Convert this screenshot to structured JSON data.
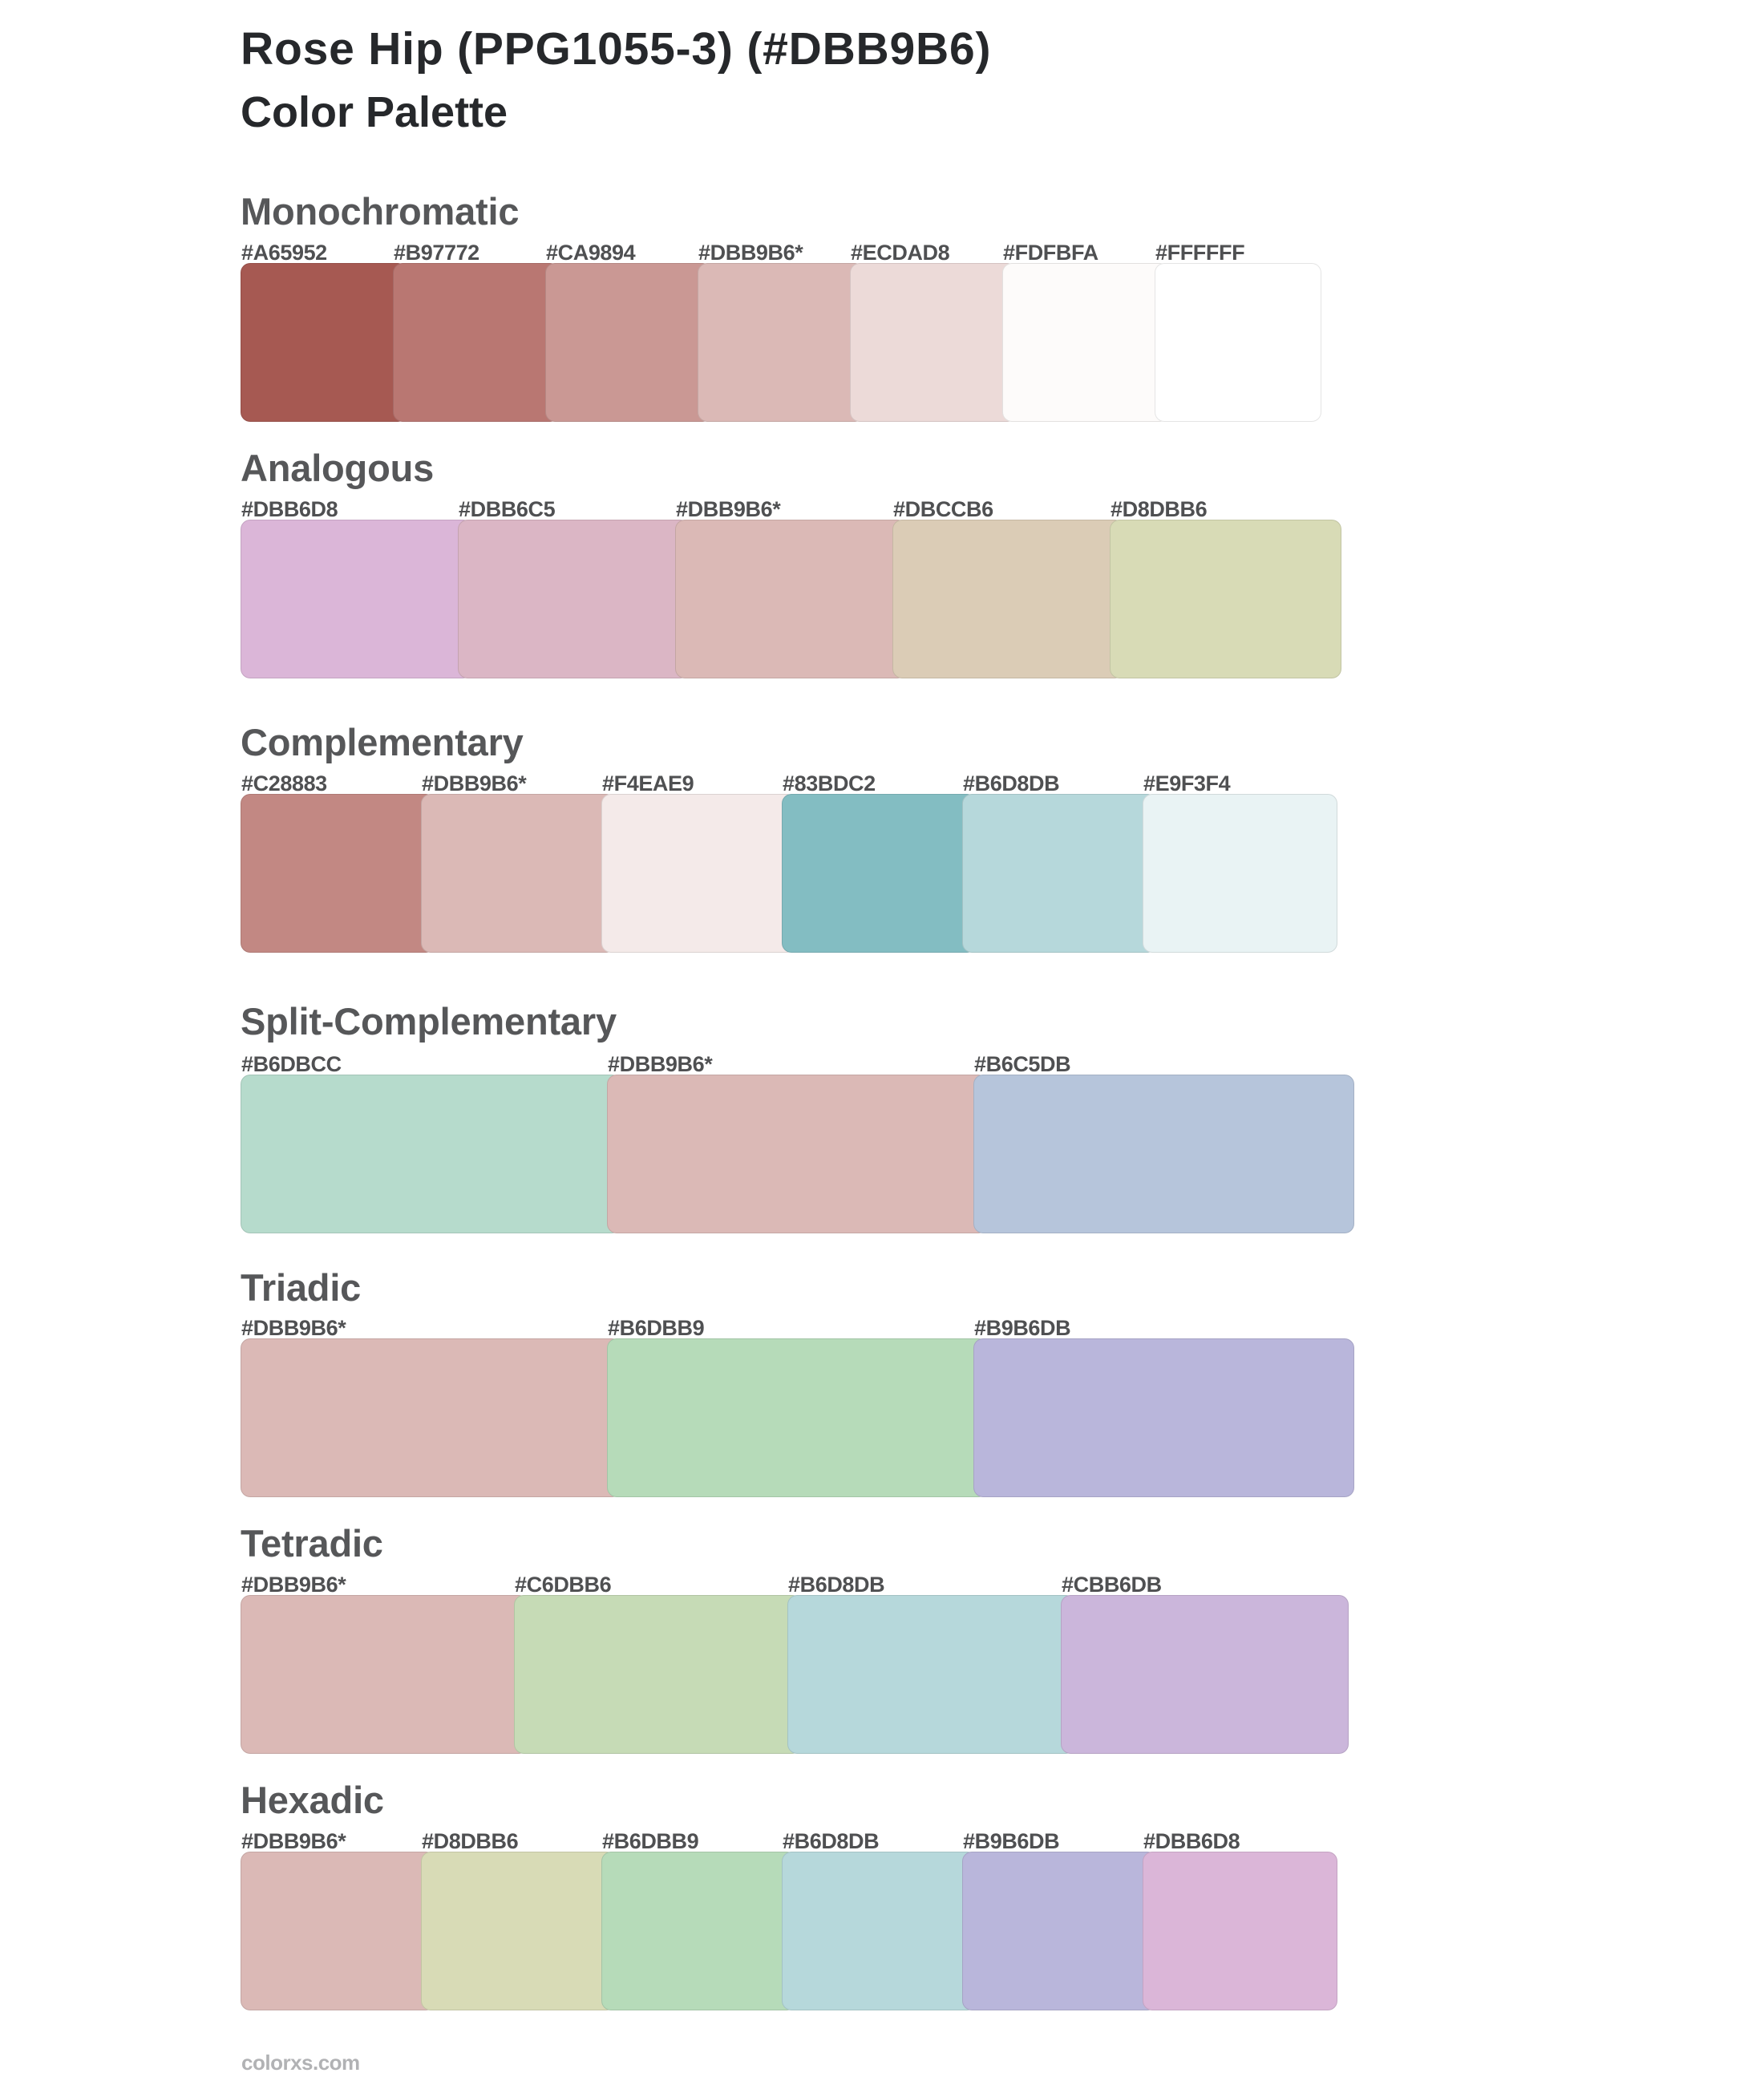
{
  "page": {
    "title": "Rose Hip (PPG1055-3) (#DBB9B6)",
    "subtitle": "Color Palette",
    "footer": "colorxs.com",
    "background": "#FFFFFF",
    "base_color": "#DBB9B6",
    "base_color_name": "Rose Hip (PPG1055-3)",
    "base_marker": "*"
  },
  "colors": {
    "title_text": "#26282B",
    "section_heading_text": "#565759",
    "swatch_label_text": "#4F5052",
    "footer_text": "#B1B2B4",
    "swatch_border": "rgba(0,0,0,0.10)"
  },
  "sections": [
    {
      "title": "Monochromatic",
      "swatches": [
        {
          "label": "#A65952",
          "color": "#A65952"
        },
        {
          "label": "#B97772",
          "color": "#B97772"
        },
        {
          "label": "#CA9894",
          "color": "#CA9894"
        },
        {
          "label": "#DBB9B6*",
          "color": "#DBB9B6"
        },
        {
          "label": "#ECDAD8",
          "color": "#ECDAD8"
        },
        {
          "label": "#FDFBFA",
          "color": "#FDFBFA"
        },
        {
          "label": "#FFFFFF",
          "color": "#FFFFFF"
        }
      ]
    },
    {
      "title": "Analogous",
      "swatches": [
        {
          "label": "#DBB6D8",
          "color": "#DBB6D8"
        },
        {
          "label": "#DBB6C5",
          "color": "#DBB6C5"
        },
        {
          "label": "#DBB9B6*",
          "color": "#DBB9B6"
        },
        {
          "label": "#DBCCB6",
          "color": "#DBCCB6"
        },
        {
          "label": "#D8DBB6",
          "color": "#D8DBB6"
        }
      ]
    },
    {
      "title": "Complementary",
      "swatches": [
        {
          "label": "#C28883",
          "color": "#C28883"
        },
        {
          "label": "#DBB9B6*",
          "color": "#DBB9B6"
        },
        {
          "label": "#F4EAE9",
          "color": "#F4EAE9"
        },
        {
          "label": "#83BDC2",
          "color": "#83BDC2"
        },
        {
          "label": "#B6D8DB",
          "color": "#B6D8DB"
        },
        {
          "label": "#E9F3F4",
          "color": "#E9F3F4"
        }
      ]
    },
    {
      "title": "Split-Complementary",
      "swatches": [
        {
          "label": "#B6DBCC",
          "color": "#B6DBCC"
        },
        {
          "label": "#DBB9B6*",
          "color": "#DBB9B6"
        },
        {
          "label": "#B6C5DB",
          "color": "#B6C5DB"
        }
      ]
    },
    {
      "title": "Triadic",
      "swatches": [
        {
          "label": "#DBB9B6*",
          "color": "#DBB9B6"
        },
        {
          "label": "#B6DBB9",
          "color": "#B6DBB9"
        },
        {
          "label": "#B9B6DB",
          "color": "#B9B6DB"
        }
      ]
    },
    {
      "title": "Tetradic",
      "swatches": [
        {
          "label": "#DBB9B6*",
          "color": "#DBB9B6"
        },
        {
          "label": "#C6DBB6",
          "color": "#C6DBB6"
        },
        {
          "label": "#B6D8DB",
          "color": "#B6D8DB"
        },
        {
          "label": "#CBB6DB",
          "color": "#CBB6DB"
        }
      ]
    },
    {
      "title": "Hexadic",
      "swatches": [
        {
          "label": "#DBB9B6*",
          "color": "#DBB9B6"
        },
        {
          "label": "#D8DBB6",
          "color": "#D8DBB6"
        },
        {
          "label": "#B6DBB9",
          "color": "#B6DBB9"
        },
        {
          "label": "#B6D8DB",
          "color": "#B6D8DB"
        },
        {
          "label": "#B9B6DB",
          "color": "#B9B6DB"
        },
        {
          "label": "#DBB6D8",
          "color": "#DBB6D8"
        }
      ]
    }
  ]
}
